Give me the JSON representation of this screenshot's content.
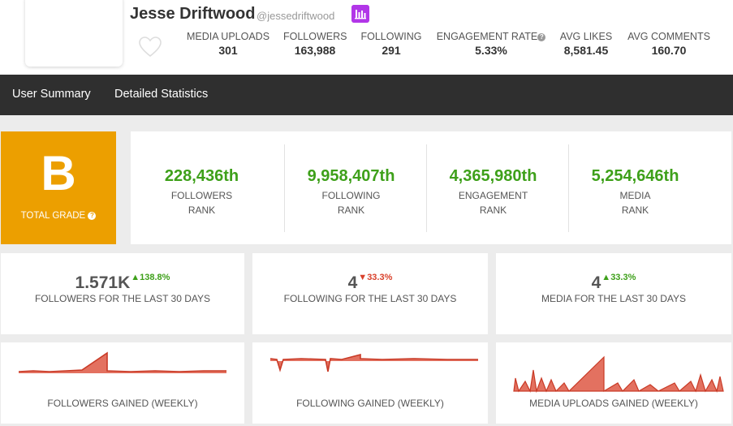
{
  "profile": {
    "name": "Jesse Driftwood",
    "handle": "@jessedriftwood",
    "stats": [
      {
        "label": "MEDIA UPLOADS",
        "value": "301"
      },
      {
        "label": "FOLLOWERS",
        "value": "163,988"
      },
      {
        "label": "FOLLOWING",
        "value": "291"
      },
      {
        "label": "ENGAGEMENT RATE",
        "value": "5.33%"
      },
      {
        "label": "AVG LIKES",
        "value": "8,581.45"
      },
      {
        "label": "AVG COMMENTS",
        "value": "160.70"
      }
    ]
  },
  "nav": {
    "tabs": [
      {
        "label": "User Summary"
      },
      {
        "label": "Detailed Statistics"
      }
    ]
  },
  "grade": {
    "letter": "B",
    "label": "TOTAL GRADE"
  },
  "ranks": [
    {
      "value": "228,436th",
      "label": "FOLLOWERS",
      "sub": "RANK"
    },
    {
      "value": "9,958,407th",
      "label": "FOLLOWING",
      "sub": "RANK"
    },
    {
      "value": "4,365,980th",
      "label": "ENGAGEMENT",
      "sub": "RANK"
    },
    {
      "value": "5,254,646th",
      "label": "MEDIA",
      "sub": "RANK"
    }
  ],
  "summary": [
    {
      "value": "1.571K",
      "change": "138.8%",
      "arrow": "▲",
      "direction": "up",
      "label": "FOLLOWERS FOR THE LAST 30 DAYS"
    },
    {
      "value": "4",
      "change": "33.3%",
      "arrow": "▼",
      "direction": "down",
      "label": "FOLLOWING FOR THE LAST 30 DAYS"
    },
    {
      "value": "4",
      "change": "33.3%",
      "arrow": "▲",
      "direction": "up",
      "label": "MEDIA FOR THE LAST 30 DAYS"
    }
  ],
  "charts": [
    {
      "label": "FOLLOWERS GAINED (WEEKLY)"
    },
    {
      "label": "FOLLOWING GAINED (WEEKLY)"
    },
    {
      "label": "MEDIA UPLOADS GAINED (WEEKLY)"
    }
  ],
  "colors": {
    "accent_purple": "#b236e8",
    "grade_orange": "#ec9f00",
    "rank_green": "#3ea01a",
    "up_green": "#3ea01a",
    "down_red": "#d9412b",
    "sparkline": "#d9412b",
    "navbar": "#2f2f2f"
  },
  "icons": {
    "heart": "heart-icon",
    "chart_badge": "bar-chart-icon",
    "help": "help-icon"
  }
}
